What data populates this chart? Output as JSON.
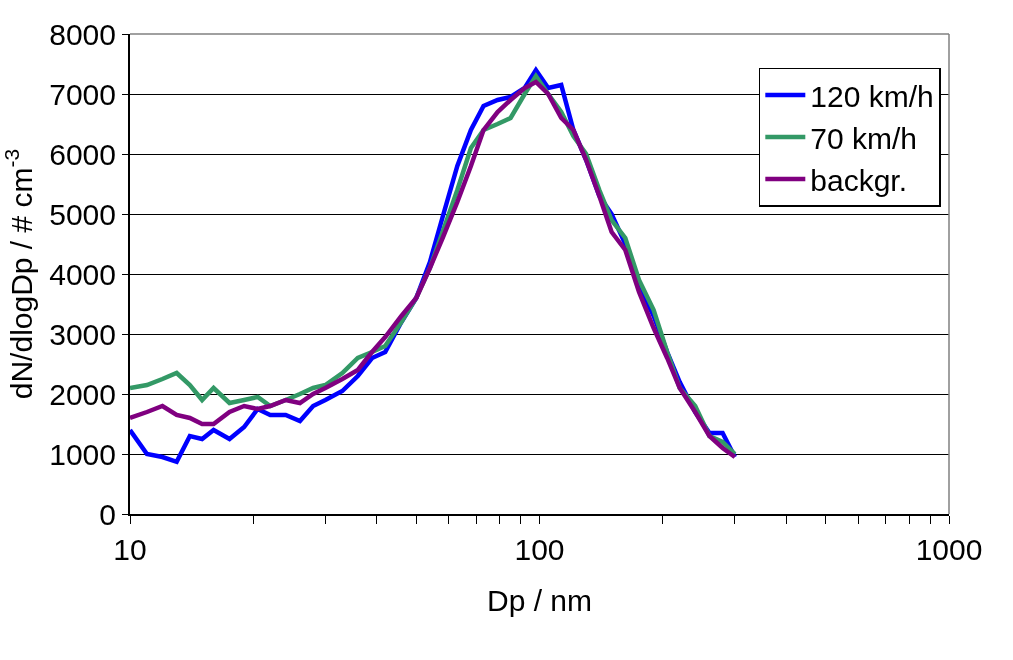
{
  "chart_data": {
    "type": "line",
    "xlabel": "Dp / nm",
    "ylabel": "dN/dlogDp / # cm$^{-3}$",
    "log": "x",
    "x": [
      10,
      11,
      12,
      13,
      14,
      15,
      16,
      17.5,
      19,
      20.5,
      22,
      24,
      26,
      28,
      30,
      33,
      36,
      39,
      42,
      46,
      50,
      54,
      58,
      63,
      68,
      73,
      79,
      85,
      92,
      98,
      105,
      113,
      121,
      130,
      140,
      150,
      162,
      175,
      190,
      205,
      220,
      240,
      260,
      280,
      300
    ],
    "series": [
      {
        "name": "120 km/h",
        "color": "#0000ff",
        "values": [
          1400,
          1000,
          950,
          870,
          1300,
          1250,
          1400,
          1250,
          1450,
          1750,
          1650,
          1650,
          1550,
          1800,
          1900,
          2050,
          2300,
          2600,
          2700,
          3200,
          3600,
          4200,
          4950,
          5800,
          6400,
          6800,
          6900,
          6950,
          7100,
          7400,
          7100,
          7150,
          6400,
          5900,
          5300,
          5000,
          4500,
          3800,
          3300,
          2700,
          2200,
          1700,
          1350,
          1350,
          950
        ]
      },
      {
        "name": "70 km/h",
        "color": "#339966",
        "values": [
          2100,
          2150,
          2250,
          2350,
          2150,
          1900,
          2100,
          1850,
          1900,
          1950,
          1800,
          1900,
          2000,
          2100,
          2150,
          2350,
          2600,
          2700,
          2800,
          3200,
          3600,
          4100,
          4700,
          5400,
          6100,
          6400,
          6500,
          6600,
          7000,
          7300,
          7000,
          6700,
          6300,
          6000,
          5400,
          4900,
          4600,
          3900,
          3400,
          2700,
          2100,
          1800,
          1300,
          1200,
          1000
        ]
      },
      {
        "name": "backgr.",
        "color": "#800080",
        "values": [
          1600,
          1700,
          1800,
          1650,
          1600,
          1500,
          1500,
          1700,
          1800,
          1750,
          1800,
          1900,
          1850,
          2000,
          2100,
          2250,
          2400,
          2700,
          2950,
          3300,
          3600,
          4100,
          4600,
          5200,
          5800,
          6400,
          6700,
          6900,
          7100,
          7200,
          7000,
          6600,
          6400,
          5900,
          5300,
          4700,
          4400,
          3700,
          3100,
          2600,
          2100,
          1700,
          1300,
          1100,
          950
        ]
      }
    ],
    "xlim": [
      10,
      1000
    ],
    "ylim": [
      0,
      8000
    ],
    "xticks": [
      10,
      {
        "value": 20,
        "label": null
      },
      {
        "value": 30,
        "label": null
      },
      {
        "value": 40,
        "label": null
      },
      {
        "value": 50,
        "label": null
      },
      {
        "value": 60,
        "label": null
      },
      {
        "value": 70,
        "label": null
      },
      {
        "value": 80,
        "label": null
      },
      {
        "value": 90,
        "label": null
      },
      100,
      {
        "value": 200,
        "label": null
      },
      {
        "value": 300,
        "label": null
      },
      {
        "value": 400,
        "label": null
      },
      {
        "value": 500,
        "label": null
      },
      {
        "value": 600,
        "label": null
      },
      {
        "value": 700,
        "label": null
      },
      {
        "value": 800,
        "label": null
      },
      {
        "value": 900,
        "label": null
      },
      1000
    ],
    "yticks": [
      0,
      1000,
      2000,
      3000,
      4000,
      5000,
      6000,
      7000,
      8000
    ],
    "grid": "y",
    "legend": "top right",
    "marker": "none",
    "line_style": "solid"
  }
}
